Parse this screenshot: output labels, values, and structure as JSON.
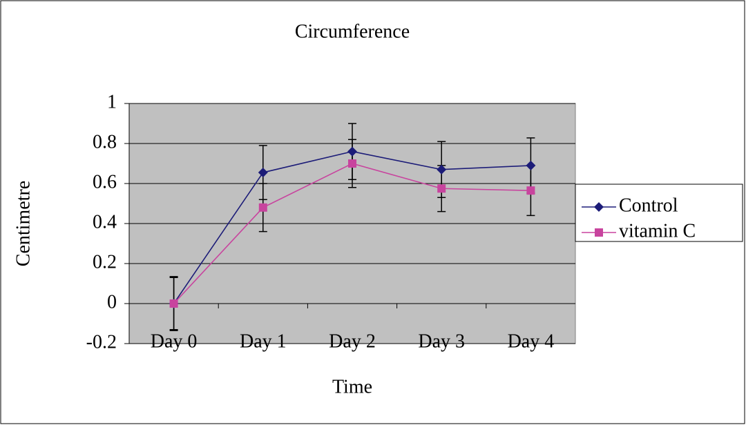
{
  "chart_data": {
    "type": "line",
    "title": "Circumference",
    "x_label": "Time",
    "y_label": "Centimetre",
    "categories": [
      "Day 0",
      "Day 1",
      "Day 2",
      "Day 3",
      "Day 4"
    ],
    "series": [
      {
        "name": "Control",
        "color": "#1c1c78",
        "marker": "diamond",
        "values": [
          0,
          0.655,
          0.76,
          0.67,
          0.69
        ],
        "errors": [
          0.135,
          0.135,
          0.14,
          0.14,
          0.138
        ]
      },
      {
        "name": "vitamin C",
        "color": "#c8449e",
        "marker": "square",
        "values": [
          0,
          0.48,
          0.7,
          0.575,
          0.565
        ],
        "errors": [
          0.13,
          0.12,
          0.12,
          0.115,
          0.125
        ]
      }
    ],
    "ylim": [
      -0.2,
      1
    ],
    "yticks": [
      -0.2,
      0,
      0.2,
      0.4,
      0.6,
      0.8,
      1
    ],
    "grid": true,
    "legend": "right"
  }
}
